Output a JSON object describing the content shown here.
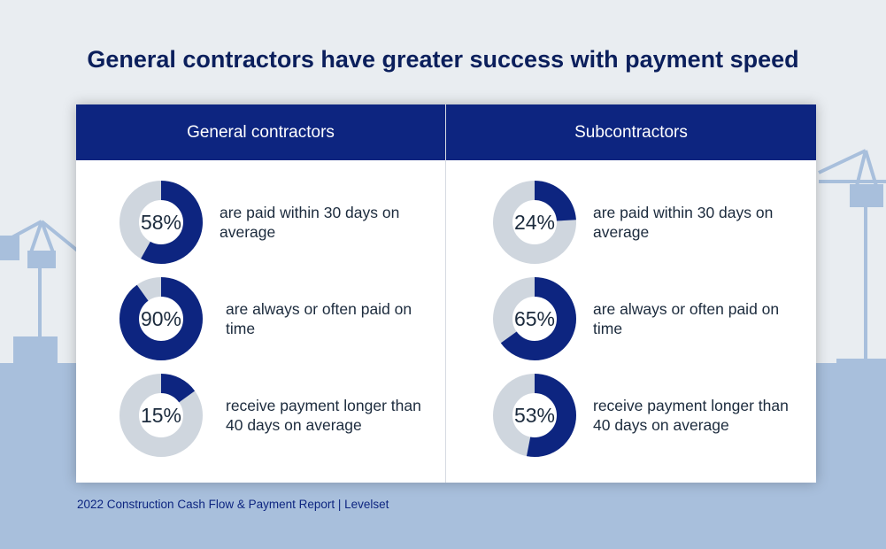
{
  "colors": {
    "accent": "#0d2580",
    "track": "#cfd6de",
    "background": "#e9edf1",
    "skyline": "#a8bfdc"
  },
  "title": "General contractors have greater success with payment speed",
  "chart_data": {
    "type": "pie",
    "title": "General contractors have greater success with payment speed",
    "groups": [
      {
        "name": "General contractors",
        "items": [
          {
            "value": 58,
            "display": "58%",
            "label": "are paid within 30 days on average"
          },
          {
            "value": 90,
            "display": "90%",
            "label": "are always or often paid on time"
          },
          {
            "value": 15,
            "display": "15%",
            "label": "receive payment longer than 40 days on average"
          }
        ]
      },
      {
        "name": "Subcontractors",
        "items": [
          {
            "value": 24,
            "display": "24%",
            "label": "are paid within 30 days on average"
          },
          {
            "value": 65,
            "display": "65%",
            "label": "are always or often paid on time"
          },
          {
            "value": 53,
            "display": "53%",
            "label": "receive payment longer than 40 days on average"
          }
        ]
      }
    ]
  },
  "source": "2022 Construction Cash Flow & Payment Report | Levelset"
}
